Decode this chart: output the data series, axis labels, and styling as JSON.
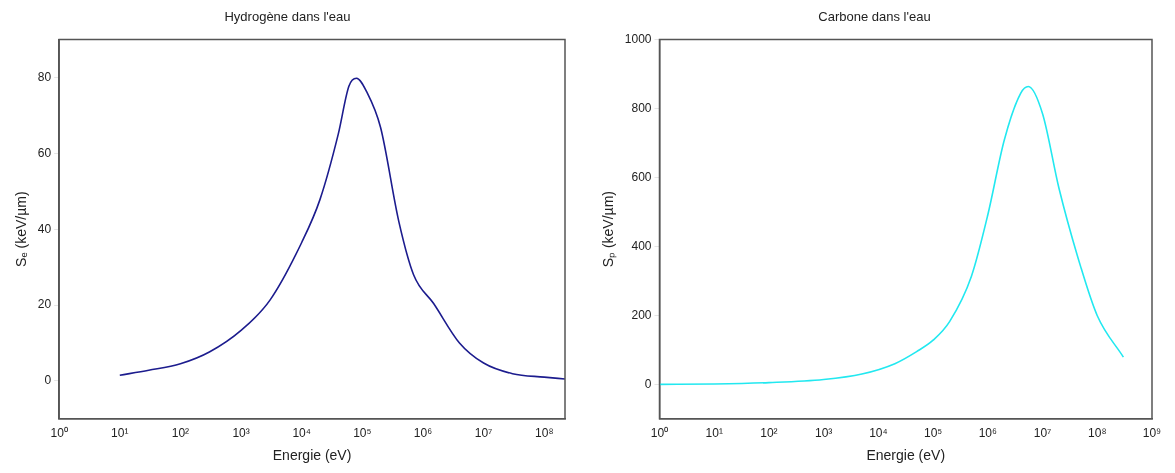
{
  "chart_data": [
    {
      "type": "line",
      "title": "Hydrogène dans l'eau",
      "xlabel": "Energie (eV)",
      "ylabel": "Sₑ (keV/µm)",
      "log": "x",
      "grid": false,
      "legend": false,
      "marker": "none",
      "line_style": "solid",
      "xlim": [
        1,
        220000000
      ],
      "ylim": [
        -10,
        90
      ],
      "xticks": [
        {
          "value": 1,
          "label": "10⁰"
        },
        {
          "value": 10,
          "label": "10¹"
        },
        {
          "value": 100,
          "label": "10²"
        },
        {
          "value": 1000,
          "label": "10³"
        },
        {
          "value": 10000,
          "label": "10⁴"
        },
        {
          "value": 100000,
          "label": "10⁵"
        },
        {
          "value": 1000000,
          "label": "10⁶"
        },
        {
          "value": 10000000,
          "label": "10⁷"
        },
        {
          "value": 100000000,
          "label": "10⁸"
        }
      ],
      "yticks": [
        0,
        20,
        40,
        60,
        80
      ],
      "series": [
        {
          "color": "#1c1c8e",
          "x": [
            10,
            30,
            100,
            300,
            1000,
            3000,
            10000,
            20000,
            40000,
            60000,
            80000,
            120000,
            200000,
            400000,
            700000,
            1500000,
            4000000,
            10000000,
            30000000,
            100000000,
            220000000
          ],
          "values": [
            1.5,
            2.8,
            4.5,
            7.6,
            13.3,
            21.3,
            36.5,
            47.8,
            65,
            77.7,
            79.8,
            76,
            66.8,
            42,
            28,
            20.4,
            10,
            4.7,
            1.9,
            1,
            0.5
          ]
        }
      ]
    },
    {
      "type": "line",
      "title": "Carbone dans l'eau",
      "xlabel": "Energie (eV)",
      "ylabel": "Sₚ (keV/µm)",
      "log": "x",
      "grid": false,
      "legend": false,
      "marker": "none",
      "line_style": "solid",
      "xlim": [
        1,
        1000000000
      ],
      "ylim": [
        -100,
        1000
      ],
      "xticks": [
        {
          "value": 1,
          "label": "10⁰"
        },
        {
          "value": 10,
          "label": "10¹"
        },
        {
          "value": 100,
          "label": "10²"
        },
        {
          "value": 1000,
          "label": "10³"
        },
        {
          "value": 10000,
          "label": "10⁴"
        },
        {
          "value": 100000,
          "label": "10⁵"
        },
        {
          "value": 1000000,
          "label": "10⁶"
        },
        {
          "value": 10000000,
          "label": "10⁷"
        },
        {
          "value": 100000000,
          "label": "10⁸"
        },
        {
          "value": 1000000000,
          "label": "10⁹"
        }
      ],
      "yticks": [
        0,
        200,
        400,
        600,
        800,
        1000
      ],
      "series": [
        {
          "color": "#22e8f0",
          "x": [
            1,
            10,
            100,
            1000,
            5000,
            20000,
            50000,
            100000,
            200000,
            500000,
            1000000,
            2000000,
            4000000,
            5500000,
            10000000,
            20000000,
            50000000,
            100000000,
            300000000
          ],
          "values": [
            0,
            1,
            5,
            14,
            30,
            60,
            95,
            128,
            182,
            313,
            492,
            709,
            845,
            864,
            785,
            568,
            340,
            199,
            79
          ]
        }
      ]
    }
  ]
}
